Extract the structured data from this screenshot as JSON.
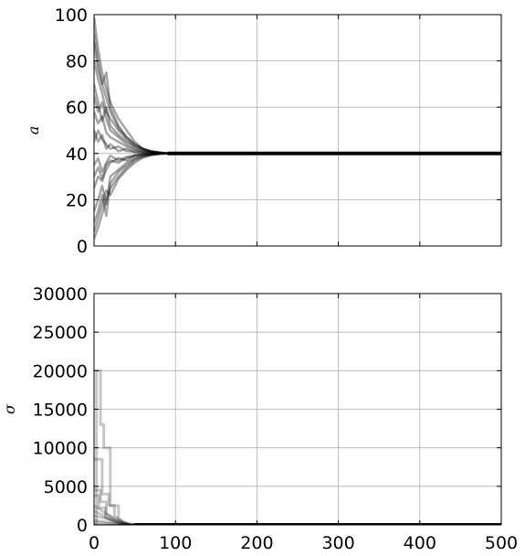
{
  "chart_data": [
    {
      "type": "line",
      "title": "",
      "xlabel": "",
      "ylabel": "a",
      "xlim": [
        0,
        500
      ],
      "ylim": [
        0,
        100
      ],
      "xticks": [
        0,
        100,
        200,
        300,
        400,
        500
      ],
      "yticks": [
        0,
        20,
        40,
        60,
        80,
        100
      ],
      "xtick_labels_visible": false,
      "grid": true,
      "series_color": "#000000",
      "description_of_series": "MCMC walker traces for parameter a; initial spread 3–99, converging to 40 by step ~90",
      "converged_value": 40,
      "series": [
        {
          "x": [
            0,
            5,
            10,
            15,
            20,
            30,
            40,
            50,
            60,
            70,
            80,
            90,
            500
          ],
          "values": [
            99,
            85,
            75,
            68,
            62,
            55,
            50,
            45,
            42,
            41,
            40.5,
            40,
            40
          ]
        },
        {
          "x": [
            0,
            5,
            10,
            15,
            20,
            30,
            40,
            50,
            60,
            70,
            80,
            90,
            500
          ],
          "values": [
            3,
            8,
            14,
            20,
            25,
            30,
            34,
            37,
            38.5,
            39.3,
            39.8,
            40,
            40
          ]
        },
        {
          "x": [
            0,
            5,
            10,
            15,
            20,
            30,
            40,
            50,
            60,
            70,
            80,
            90,
            500
          ],
          "values": [
            92,
            80,
            70,
            75,
            60,
            52,
            47,
            44,
            42,
            40.8,
            40.3,
            40,
            40
          ]
        },
        {
          "x": [
            0,
            5,
            10,
            15,
            20,
            30,
            40,
            50,
            60,
            70,
            80,
            90,
            500
          ],
          "values": [
            10,
            15,
            22,
            13,
            27,
            32,
            35,
            37.5,
            39,
            39.5,
            39.9,
            40,
            40
          ]
        },
        {
          "x": [
            0,
            5,
            10,
            15,
            20,
            30,
            40,
            50,
            60,
            70,
            80,
            90,
            500
          ],
          "values": [
            65,
            58,
            62,
            55,
            50,
            47,
            44,
            42,
            41,
            40.5,
            40.2,
            40,
            40
          ]
        },
        {
          "x": [
            0,
            5,
            10,
            15,
            20,
            30,
            40,
            50,
            60,
            70,
            80,
            90,
            500
          ],
          "values": [
            25,
            30,
            28,
            33,
            36,
            38,
            37,
            39,
            39.5,
            39.8,
            40,
            40,
            40
          ]
        },
        {
          "x": [
            0,
            5,
            10,
            15,
            20,
            30,
            40,
            50,
            60,
            70,
            80,
            90,
            500
          ],
          "values": [
            50,
            45,
            48,
            42,
            44,
            41,
            42,
            40.5,
            40.3,
            40.1,
            40,
            40,
            40
          ]
        },
        {
          "x": [
            0,
            5,
            10,
            15,
            20,
            30,
            40,
            50,
            60,
            70,
            80,
            90,
            500
          ],
          "values": [
            80,
            72,
            66,
            58,
            55,
            50,
            46,
            43,
            41.5,
            40.7,
            40.2,
            40,
            40
          ]
        },
        {
          "x": [
            0,
            5,
            10,
            15,
            20,
            30,
            40,
            50,
            60,
            70,
            80,
            90,
            500
          ],
          "values": [
            35,
            38,
            32,
            36,
            39,
            37,
            38.5,
            39.2,
            39.6,
            39.9,
            40,
            40,
            40
          ]
        },
        {
          "x": [
            0,
            5,
            10,
            15,
            20,
            30,
            40,
            50,
            60,
            70,
            80,
            90,
            500
          ],
          "values": [
            70,
            62,
            54,
            60,
            52,
            48,
            45,
            43,
            41.8,
            40.9,
            40.3,
            40,
            40
          ]
        },
        {
          "x": [
            0,
            5,
            10,
            15,
            20,
            30,
            40,
            50,
            60,
            70,
            80,
            90,
            500
          ],
          "values": [
            15,
            20,
            26,
            18,
            30,
            33,
            36,
            38,
            39,
            39.6,
            39.9,
            40,
            40
          ]
        },
        {
          "x": [
            0,
            5,
            10,
            15,
            20,
            30,
            40,
            50,
            60,
            70,
            80,
            90,
            500
          ],
          "values": [
            45,
            50,
            46,
            44,
            42,
            43,
            41,
            40.8,
            40.4,
            40.2,
            40,
            40,
            40
          ]
        },
        {
          "x": [
            0,
            5,
            10,
            15,
            20,
            30,
            40,
            50,
            60,
            70,
            80,
            90,
            500
          ],
          "values": [
            88,
            76,
            70,
            64,
            58,
            51,
            47,
            44,
            42,
            40.9,
            40.4,
            40,
            40
          ]
        },
        {
          "x": [
            0,
            5,
            10,
            15,
            20,
            30,
            40,
            50,
            60,
            70,
            80,
            90,
            500
          ],
          "values": [
            6,
            12,
            18,
            24,
            22,
            29,
            33,
            36,
            38.2,
            39.3,
            39.8,
            40,
            40
          ]
        },
        {
          "x": [
            0,
            5,
            10,
            15,
            20,
            30,
            40,
            50,
            60,
            70,
            80,
            90,
            500
          ],
          "values": [
            58,
            53,
            56,
            49,
            47,
            45,
            43,
            41.6,
            40.8,
            40.3,
            40.1,
            40,
            40
          ]
        },
        {
          "x": [
            0,
            5,
            10,
            15,
            20,
            30,
            40,
            50,
            60,
            70,
            80,
            90,
            500
          ],
          "values": [
            30,
            34,
            29,
            35,
            37,
            36,
            38,
            39,
            39.6,
            39.9,
            40,
            40,
            40
          ]
        }
      ]
    },
    {
      "type": "line",
      "title": "",
      "xlabel": "",
      "ylabel": "σ",
      "xlim": [
        0,
        500
      ],
      "ylim": [
        0,
        30000
      ],
      "xticks": [
        0,
        100,
        200,
        300,
        400,
        500
      ],
      "yticks": [
        0,
        5000,
        10000,
        15000,
        20000,
        25000,
        30000
      ],
      "xtick_labels_visible": true,
      "grid": true,
      "series_color": "#000000",
      "description_of_series": "MCMC walker traces for parameter σ; a few walkers start high (up to ~20000) and collapse to ~0 by step ~50",
      "converged_value": 0,
      "series": [
        {
          "x": [
            0,
            3,
            3,
            8,
            8,
            12,
            12,
            20,
            20,
            30,
            30,
            40,
            50,
            500
          ],
          "values": [
            0,
            0,
            20000,
            20000,
            13000,
            13000,
            10000,
            10000,
            2500,
            2500,
            800,
            200,
            0,
            0
          ]
        },
        {
          "x": [
            0,
            10,
            10,
            18,
            18,
            25,
            25,
            35,
            45,
            500
          ],
          "values": [
            8500,
            8500,
            4000,
            4000,
            2500,
            2500,
            1200,
            400,
            0,
            0
          ]
        },
        {
          "x": [
            0,
            8,
            8,
            15,
            15,
            25,
            35,
            45,
            500
          ],
          "values": [
            4500,
            4500,
            3000,
            3000,
            1500,
            800,
            300,
            0,
            0
          ]
        },
        {
          "x": [
            0,
            6,
            6,
            14,
            14,
            22,
            32,
            42,
            500
          ],
          "values": [
            3800,
            3800,
            2200,
            2200,
            1000,
            600,
            200,
            0,
            0
          ]
        },
        {
          "x": [
            0,
            10,
            18,
            26,
            36,
            46,
            500
          ],
          "values": [
            2500,
            1800,
            1200,
            700,
            250,
            0,
            0
          ]
        },
        {
          "x": [
            0,
            8,
            16,
            24,
            34,
            44,
            500
          ],
          "values": [
            1800,
            1400,
            900,
            500,
            150,
            0,
            0
          ]
        },
        {
          "x": [
            0,
            12,
            22,
            32,
            42,
            500
          ],
          "values": [
            1200,
            900,
            600,
            250,
            0,
            0
          ]
        },
        {
          "x": [
            0,
            10,
            20,
            30,
            40,
            500
          ],
          "values": [
            600,
            450,
            300,
            120,
            0,
            0
          ]
        },
        {
          "x": [
            0,
            15,
            30,
            45,
            500
          ],
          "values": [
            300,
            200,
            80,
            0,
            0
          ]
        },
        {
          "x": [
            0,
            500
          ],
          "values": [
            0,
            0
          ]
        }
      ]
    }
  ]
}
